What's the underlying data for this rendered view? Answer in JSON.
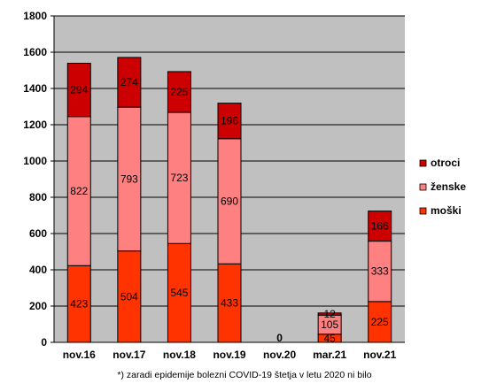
{
  "chart_data": {
    "type": "bar",
    "stacked": true,
    "categories": [
      "nov.16",
      "nov.17",
      "nov.18",
      "nov.19",
      "nov.20",
      "mar.21",
      "nov.21"
    ],
    "series": [
      {
        "name": "moški",
        "values": [
          423,
          504,
          545,
          433,
          0,
          45,
          225
        ],
        "color": "#ff3300"
      },
      {
        "name": "ženske",
        "values": [
          822,
          793,
          723,
          690,
          0,
          105,
          333
        ],
        "color": "#ff8080"
      },
      {
        "name": "otroci",
        "values": [
          294,
          274,
          225,
          196,
          0,
          12,
          166
        ],
        "color": "#cc0000"
      }
    ],
    "zero_label": "0",
    "ylim": [
      0,
      1800
    ],
    "yticks": [
      "0",
      "200",
      "400",
      "600",
      "800",
      "1000",
      "1200",
      "1400",
      "1600",
      "1800"
    ],
    "grid": true,
    "plot_background": "#c0c0c0",
    "legend_position": "right",
    "footnote": "*) zaradi epidemije bolezni COVID-19 štetja v letu 2020 ni bilo"
  }
}
